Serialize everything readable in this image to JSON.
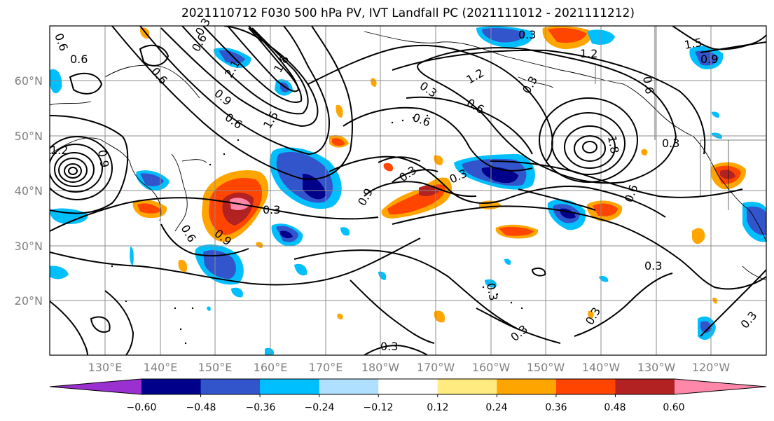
{
  "title": "2021110712 F030 500 hPa PV, IVT Landfall PC (2021111012 - 2021111212)",
  "chart_data": {
    "type": "map-contour",
    "title": "2021110712 F030 500 hPa PV, IVT Landfall PC (2021111012 - 2021111212)",
    "lat_ticks": [
      "20°N",
      "30°N",
      "40°N",
      "50°N",
      "60°N"
    ],
    "lon_ticks": [
      "130°E",
      "140°E",
      "150°E",
      "160°E",
      "170°E",
      "180°W",
      "170°W",
      "160°W",
      "150°W",
      "140°W",
      "130°W",
      "120°W"
    ],
    "colorbar": {
      "tick_labels": [
        "−0.60",
        "−0.48",
        "−0.36",
        "−0.24",
        "−0.12",
        "0.12",
        "0.24",
        "0.36",
        "0.48",
        "0.60"
      ],
      "colors": [
        "#9b30d0",
        "#00008b",
        "#3355cc",
        "#00bfff",
        "#b0e0ff",
        "#ffffff",
        "#ffeb80",
        "#ffa500",
        "#ff4500",
        "#b22222",
        "#ff88aa"
      ]
    },
    "contour_labels": [
      "0.6",
      "0.6",
      "0.6",
      "0.9",
      "0.6",
      "1.2",
      "0.9",
      "0.6",
      "0.3",
      "0.3",
      "0.6",
      "0.9",
      "2.1",
      "1.8",
      "1.5",
      "0.3",
      "0.6",
      "0.3",
      "0.9",
      "0.3",
      "0.3",
      "1.2",
      "1.5",
      "0.9",
      "0.6",
      "1.8",
      "0.3",
      "0.6",
      "0.3",
      "0.3",
      "0.3",
      "0.3",
      "0.3",
      "0.3",
      "0.3",
      "1.2",
      "0.6"
    ],
    "grid": true
  }
}
